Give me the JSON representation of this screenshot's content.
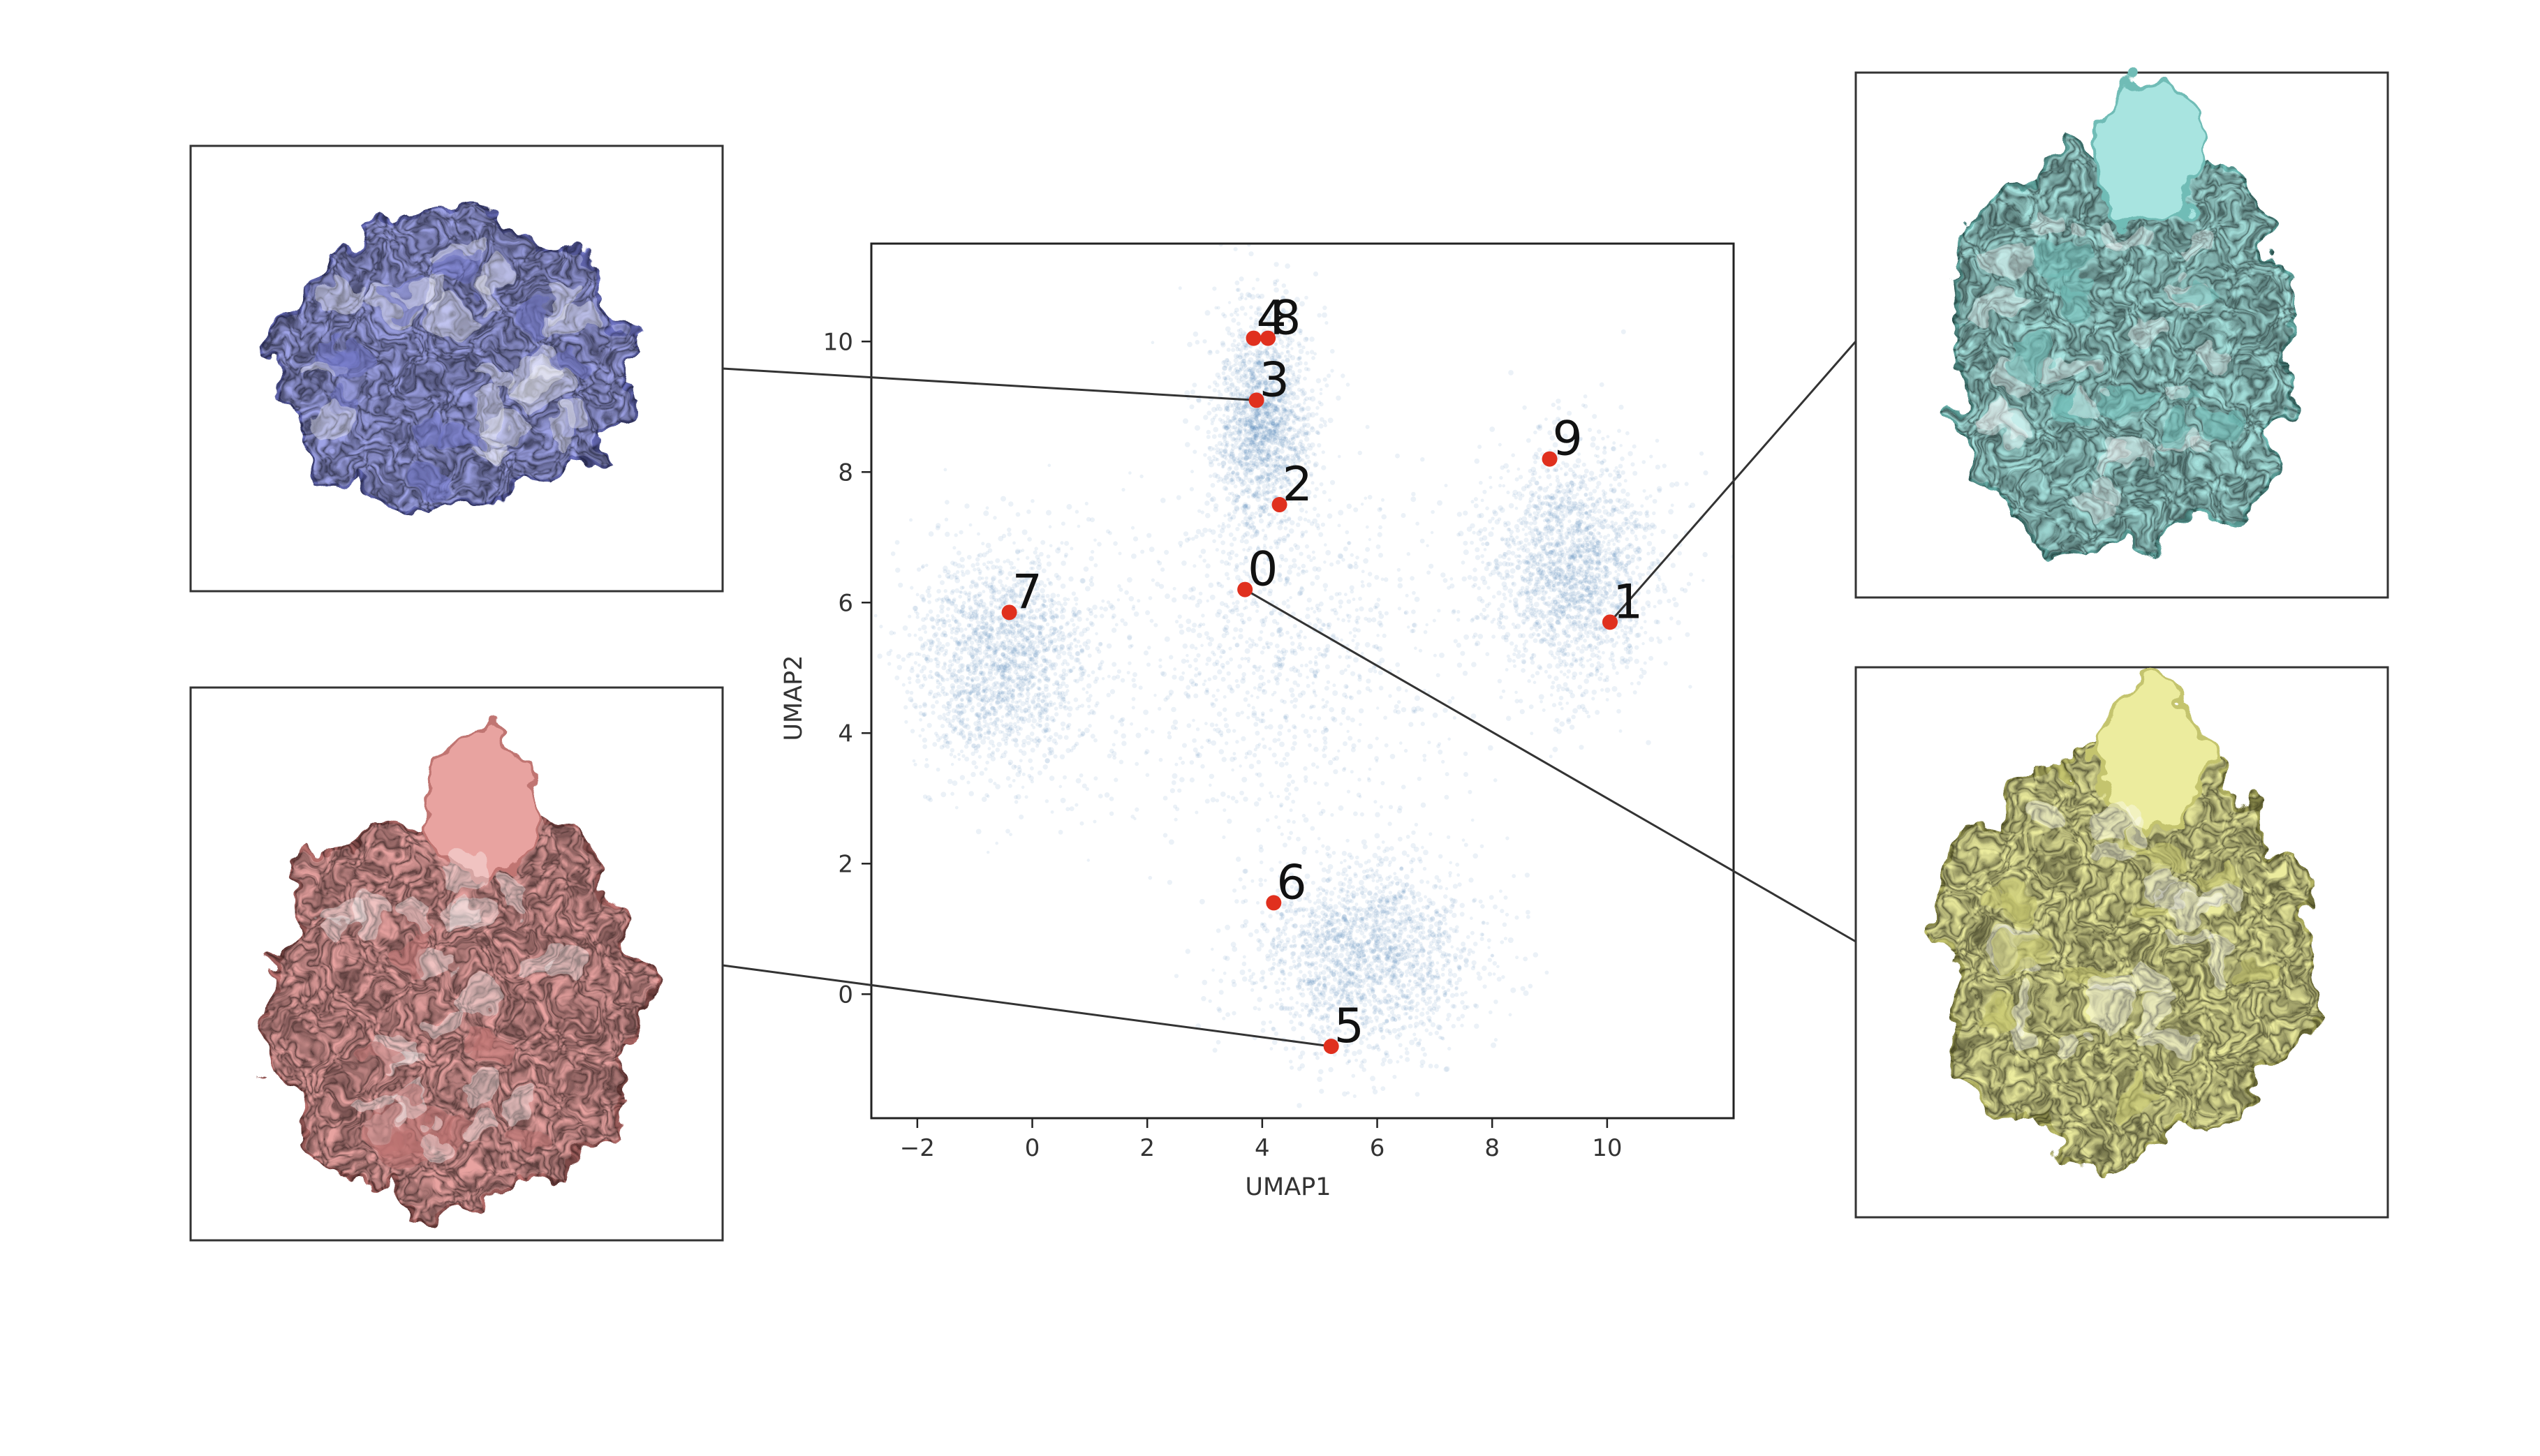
{
  "chart_data": {
    "type": "scatter",
    "xlabel": "UMAP1",
    "ylabel": "UMAP2",
    "xlim": [
      -2.8,
      12.2
    ],
    "ylim": [
      -1.9,
      11.5
    ],
    "xticks": [
      "−2",
      "0",
      "2",
      "4",
      "6",
      "8",
      "10"
    ],
    "xtick_values": [
      -2,
      0,
      2,
      4,
      6,
      8,
      10
    ],
    "yticks": [
      "0",
      "2",
      "4",
      "6",
      "8",
      "10"
    ],
    "ytick_values": [
      0,
      2,
      4,
      6,
      8,
      10
    ],
    "grid": false,
    "colors": {
      "density": "#3b78b0",
      "centers": "#e0301e",
      "frame": "#222222"
    },
    "density_clusters": [
      {
        "x": -0.5,
        "y": 5.1,
        "sx": 1.3,
        "sy": 1.4,
        "weight": 1.0
      },
      {
        "x": 9.4,
        "y": 6.5,
        "sx": 1.2,
        "sy": 1.5,
        "weight": 1.0
      },
      {
        "x": 5.8,
        "y": 0.6,
        "sx": 1.6,
        "sy": 1.2,
        "weight": 1.0
      },
      {
        "x": 4.0,
        "y": 8.8,
        "sx": 0.7,
        "sy": 1.4,
        "weight": 0.9
      },
      {
        "x": 4.3,
        "y": 5.2,
        "sx": 2.6,
        "sy": 2.2,
        "weight": 0.55
      }
    ],
    "points": [
      {
        "label": "0",
        "x": 3.7,
        "y": 6.2
      },
      {
        "label": "1",
        "x": 10.05,
        "y": 5.7
      },
      {
        "label": "2",
        "x": 4.3,
        "y": 7.5
      },
      {
        "label": "3",
        "x": 3.9,
        "y": 9.1
      },
      {
        "label": "4",
        "x": 3.85,
        "y": 10.05
      },
      {
        "label": "8",
        "x": 4.1,
        "y": 10.05
      },
      {
        "label": "9",
        "x": 9.0,
        "y": 8.2
      },
      {
        "label": "7",
        "x": -0.4,
        "y": 5.85
      },
      {
        "label": "6",
        "x": 4.2,
        "y": 1.4
      },
      {
        "label": "5",
        "x": 5.2,
        "y": -0.8
      }
    ]
  },
  "insets": [
    {
      "name": "volume-inset-blue",
      "color": "#9ea3e6",
      "dark": "#6f74c4",
      "links_to": "3"
    },
    {
      "name": "volume-inset-pink",
      "color": "#e8a3a0",
      "dark": "#c07572",
      "links_to": "5"
    },
    {
      "name": "volume-inset-cyan",
      "color": "#a8e4e0",
      "dark": "#6fbcb6",
      "links_to": "1"
    },
    {
      "name": "volume-inset-yellow",
      "color": "#ecec9e",
      "dark": "#c4c46e",
      "links_to": "0"
    }
  ]
}
